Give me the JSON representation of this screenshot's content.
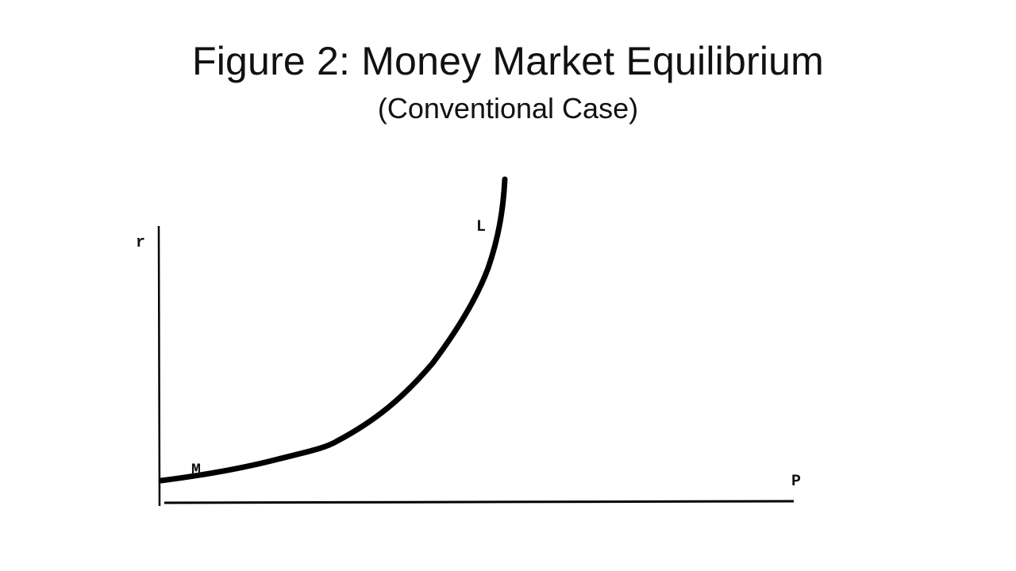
{
  "slide": {
    "title": "Figure 2: Money Market Equilibrium",
    "subtitle": "(Conventional Case)"
  },
  "diagram": {
    "y_axis_label": "r",
    "x_axis_label": "P",
    "curve_top_label": "L",
    "curve_bottom_label": "M",
    "curve_shape": "convex, increasing steeply (near-vertical at top)",
    "line_color": "#000000"
  }
}
